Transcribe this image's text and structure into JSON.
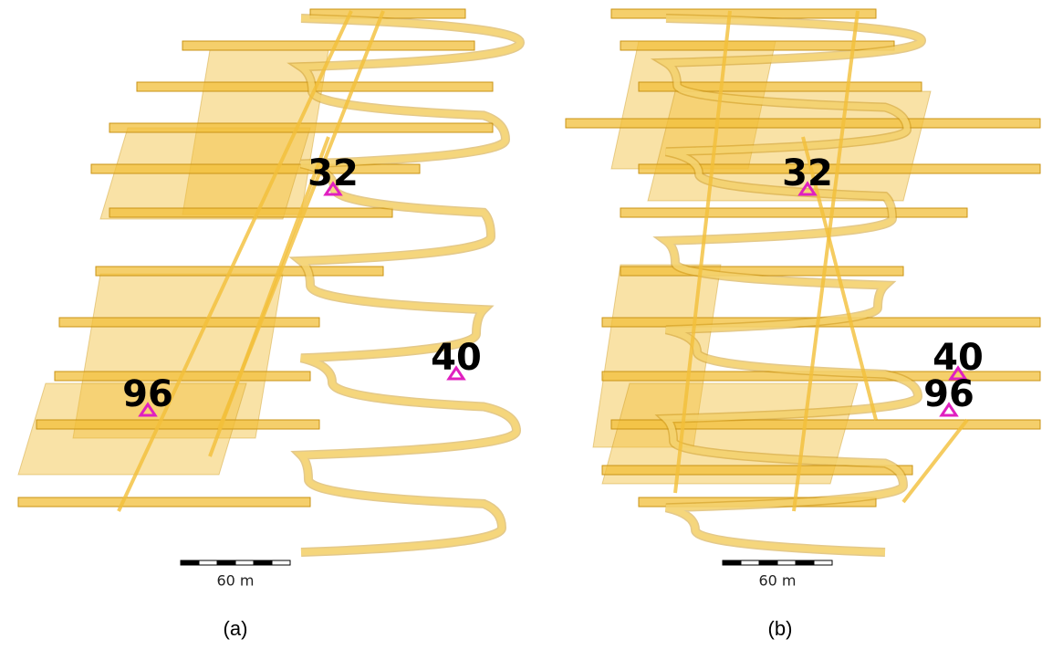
{
  "panels": [
    {
      "caption": "(a)",
      "scale_label": "60 m",
      "markers": [
        {
          "label": "32"
        },
        {
          "label": "40"
        },
        {
          "label": "96"
        }
      ]
    },
    {
      "caption": "(b)",
      "scale_label": "60 m",
      "markers": [
        {
          "label": "32"
        },
        {
          "label": "40"
        },
        {
          "label": "96"
        }
      ]
    }
  ]
}
